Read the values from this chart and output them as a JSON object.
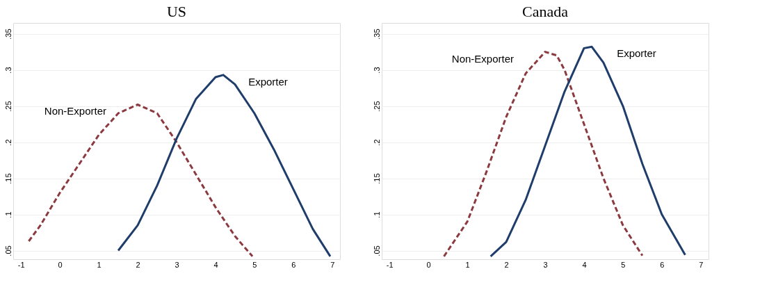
{
  "chart_data": [
    {
      "type": "line",
      "title": "US",
      "xlim": [
        -1.2,
        7.2
      ],
      "ylim": [
        0.038,
        0.365
      ],
      "xticks": [
        -1,
        0,
        1,
        2,
        3,
        4,
        5,
        6,
        7
      ],
      "yticks": [
        {
          "value": 0.05,
          "label": ".05"
        },
        {
          "value": 0.1,
          "label": ".1"
        },
        {
          "value": 0.15,
          "label": ".15"
        },
        {
          "value": 0.2,
          "label": ".2"
        },
        {
          "value": 0.25,
          "label": ".25"
        },
        {
          "value": 0.3,
          "label": ".3"
        },
        {
          "value": 0.35,
          "label": ".35"
        }
      ],
      "grid": "y",
      "series": [
        {
          "name": "Non-Exporter",
          "color": "#8b3a3f",
          "line_style": "dashed",
          "x": [
            -0.8,
            -0.5,
            0,
            0.5,
            1,
            1.5,
            2,
            2.5,
            3,
            3.5,
            4,
            4.5,
            4.95
          ],
          "values": [
            0.063,
            0.085,
            0.13,
            0.17,
            0.21,
            0.24,
            0.252,
            0.24,
            0.2,
            0.155,
            0.11,
            0.07,
            0.042
          ]
        },
        {
          "name": "Exporter",
          "color": "#1f3d6b",
          "line_style": "solid",
          "x": [
            1.5,
            2,
            2.5,
            3,
            3.5,
            4,
            4.2,
            4.5,
            5,
            5.5,
            6,
            6.5,
            6.95
          ],
          "values": [
            0.05,
            0.085,
            0.14,
            0.205,
            0.26,
            0.29,
            0.293,
            0.28,
            0.24,
            0.19,
            0.135,
            0.08,
            0.042
          ]
        }
      ]
    },
    {
      "type": "line",
      "title": "Canada",
      "xlim": [
        -1.2,
        7.2
      ],
      "ylim": [
        0.038,
        0.365
      ],
      "xticks": [
        -1,
        0,
        1,
        2,
        3,
        4,
        5,
        6,
        7
      ],
      "yticks": [
        {
          "value": 0.05,
          "label": ".05"
        },
        {
          "value": 0.1,
          "label": ".1"
        },
        {
          "value": 0.15,
          "label": ".15"
        },
        {
          "value": 0.2,
          "label": ".2"
        },
        {
          "value": 0.25,
          "label": ".25"
        },
        {
          "value": 0.3,
          "label": ".3"
        },
        {
          "value": 0.35,
          "label": ".35"
        }
      ],
      "grid": "y",
      "series": [
        {
          "name": "Non-Exporter",
          "color": "#8b3a3f",
          "line_style": "dashed",
          "x": [
            0.4,
            1,
            1.5,
            2,
            2.5,
            3,
            3.3,
            3.5,
            4,
            4.5,
            5,
            5.5
          ],
          "values": [
            0.042,
            0.09,
            0.16,
            0.235,
            0.295,
            0.325,
            0.32,
            0.3,
            0.225,
            0.15,
            0.085,
            0.043
          ]
        },
        {
          "name": "Exporter",
          "color": "#1f3d6b",
          "line_style": "solid",
          "x": [
            1.6,
            2,
            2.5,
            3,
            3.5,
            4,
            4.2,
            4.5,
            5,
            5.5,
            6,
            6.6
          ],
          "values": [
            0.042,
            0.062,
            0.12,
            0.195,
            0.27,
            0.33,
            0.332,
            0.31,
            0.25,
            0.17,
            0.1,
            0.044
          ]
        }
      ]
    }
  ]
}
